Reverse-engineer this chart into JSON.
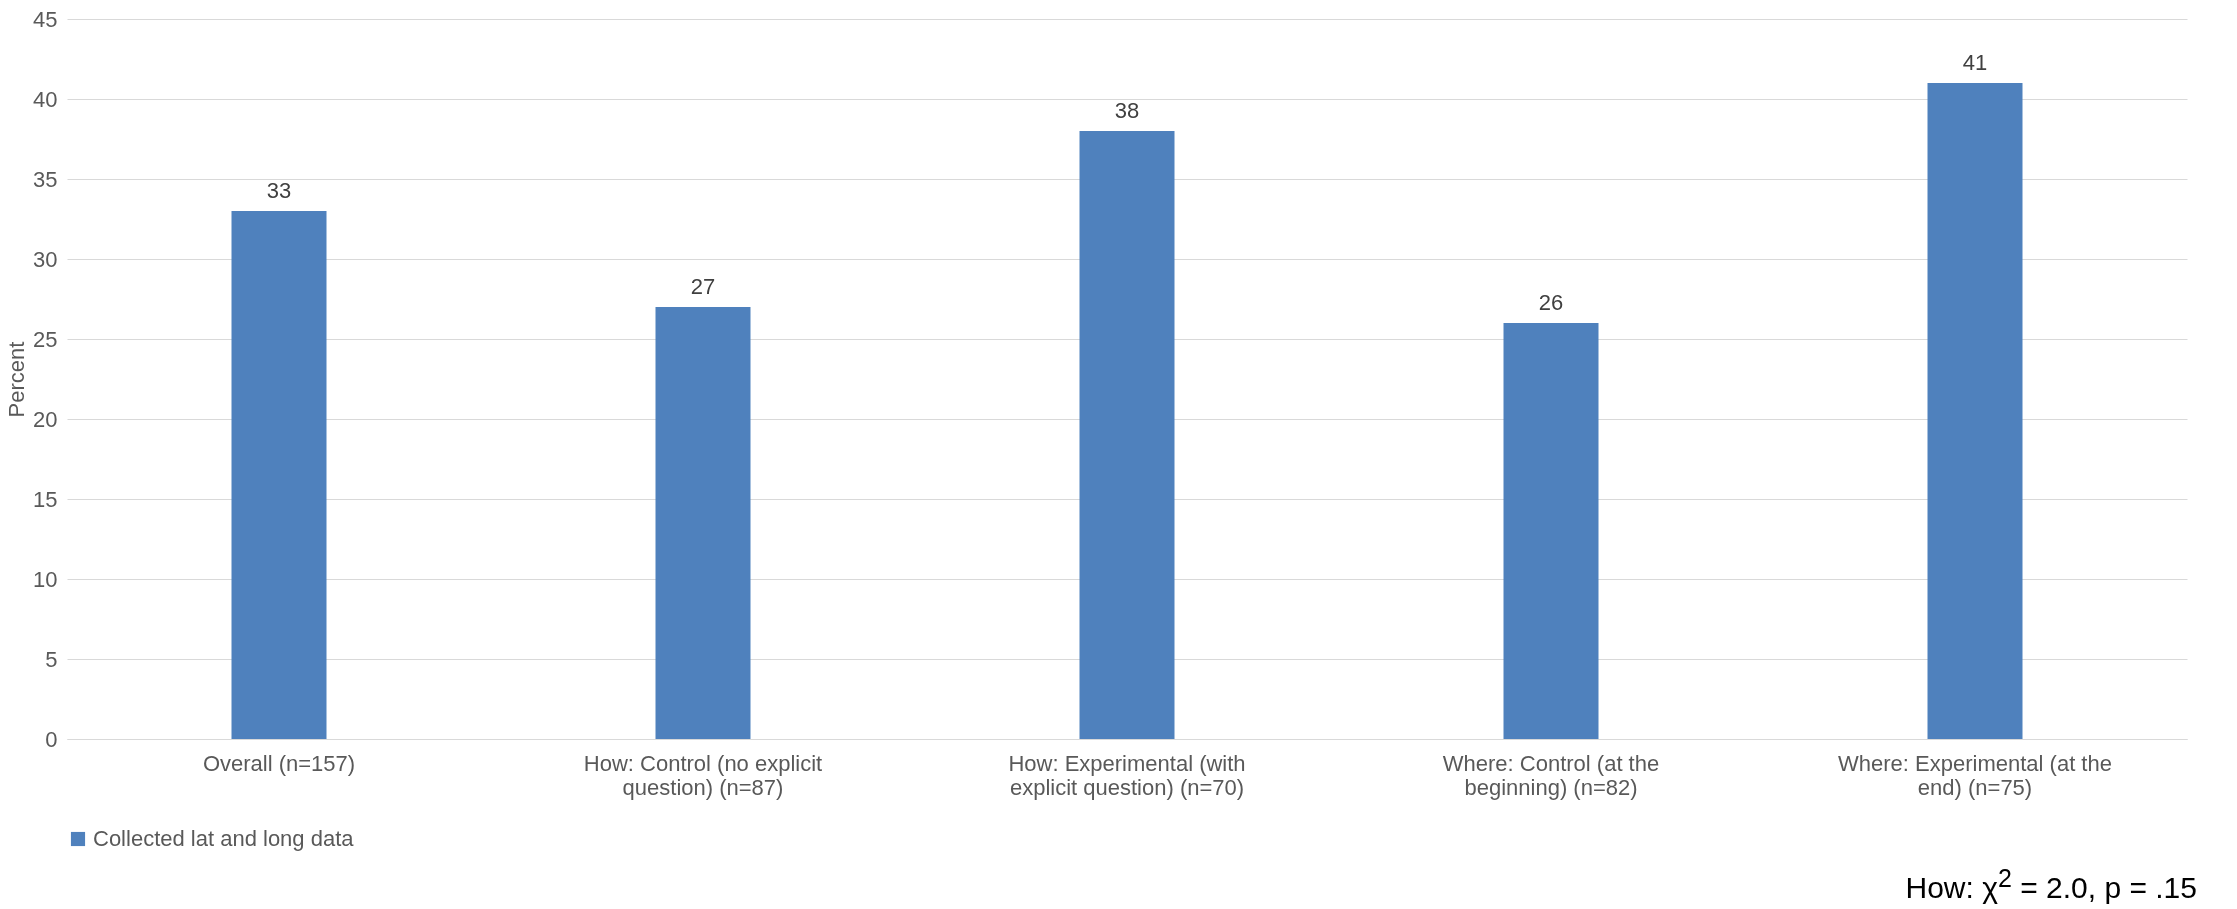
{
  "chart_data": {
    "type": "bar",
    "ylabel": "Percent",
    "categories": [
      "Overall (n=157)",
      "How:  Control  (no explicit question) (n=87)",
      "How:  Experimental (with explicit question) (n=70)",
      "Where:  Control (at the beginning) (n=82)",
      "Where:  Experimental (at the end) (n=75)"
    ],
    "series": [
      {
        "name": "Collected lat and long data",
        "color": "#4f81bd",
        "values": [
          33,
          27,
          38,
          26,
          41
        ]
      }
    ],
    "ylim": [
      0,
      45
    ],
    "yticks": [
      0,
      5,
      10,
      15,
      20,
      25,
      30,
      35,
      40,
      45
    ],
    "grid": "y",
    "legend": "bottom",
    "data_labels": true,
    "annotations": [
      "How:  χ$^{2}$ = 2.0, p = .15"
    ]
  }
}
